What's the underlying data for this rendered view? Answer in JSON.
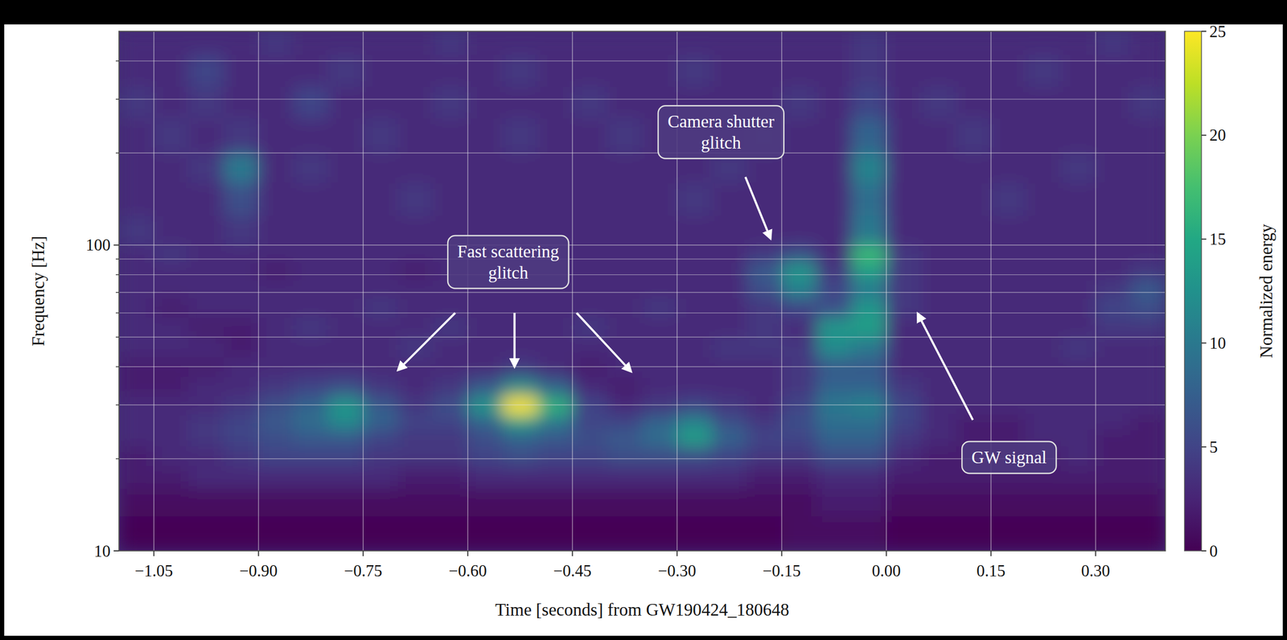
{
  "chart_data": {
    "type": "heatmap",
    "xlabel": "Time [seconds] from GW190424_180648",
    "ylabel": "Frequency [Hz]",
    "log": "y",
    "grid": true,
    "xlim": [
      -1.1,
      0.4
    ],
    "ylim": [
      10,
      500
    ],
    "xticks": [
      {
        "value": -1.05,
        "label": "−1.05"
      },
      {
        "value": -0.9,
        "label": "−0.90"
      },
      {
        "value": -0.75,
        "label": "−0.75"
      },
      {
        "value": -0.6,
        "label": "−0.60"
      },
      {
        "value": -0.45,
        "label": "−0.45"
      },
      {
        "value": -0.3,
        "label": "−0.30"
      },
      {
        "value": -0.15,
        "label": "−0.15"
      },
      {
        "value": 0,
        "label": "0.00"
      },
      0.15,
      {
        "value": 0.3,
        "label": "0.30"
      }
    ],
    "yticks": [
      10,
      100
    ],
    "yticks_minor": [
      20,
      30,
      40,
      50,
      60,
      70,
      80,
      90,
      200,
      300,
      400
    ],
    "x_edges": [
      -1.1,
      -1.05,
      -1.0,
      -0.95,
      -0.9,
      -0.85,
      -0.8,
      -0.75,
      -0.7,
      -0.65,
      -0.6,
      -0.55,
      -0.5,
      -0.45,
      -0.4,
      -0.35,
      -0.3,
      -0.25,
      -0.2,
      -0.15,
      -0.1,
      -0.05,
      0,
      0.05,
      0.1,
      0.15,
      0.2,
      0.25,
      0.3,
      0.35,
      0.4
    ],
    "y_edges": [
      10,
      13,
      16,
      19,
      22,
      25,
      28,
      32,
      37,
      43,
      50,
      58,
      67,
      77,
      88,
      100,
      125,
      160,
      200,
      260,
      330,
      420,
      500
    ],
    "z": [
      [
        0,
        0,
        0,
        0,
        0,
        0,
        0,
        0,
        0,
        0,
        0,
        0,
        0,
        0,
        0,
        0,
        0,
        0,
        0,
        1,
        1,
        1,
        0,
        0,
        0,
        0,
        0,
        0,
        0,
        0
      ],
      [
        1,
        1,
        1,
        1,
        1,
        1,
        1,
        1,
        1,
        1,
        1,
        1,
        1,
        1,
        1,
        1,
        1,
        1,
        1,
        1,
        2,
        2,
        1,
        1,
        1,
        1,
        1,
        1,
        1,
        1
      ],
      [
        2,
        2,
        3,
        3,
        3,
        3,
        3,
        3,
        2,
        2,
        3,
        3,
        3,
        3,
        3,
        3,
        3,
        3,
        2,
        2,
        3,
        3,
        2,
        2,
        2,
        2,
        2,
        2,
        2,
        2
      ],
      [
        2,
        3,
        3,
        4,
        5,
        5,
        5,
        4,
        4,
        4,
        5,
        6,
        5,
        5,
        6,
        6,
        6,
        5,
        4,
        4,
        6,
        6,
        3,
        2,
        2,
        2,
        2,
        3,
        2,
        2
      ],
      [
        3,
        3,
        4,
        5,
        6,
        7,
        7,
        5,
        4,
        4,
        6,
        8,
        7,
        6,
        7,
        9,
        14,
        8,
        5,
        5,
        8,
        8,
        4,
        3,
        2,
        2,
        3,
        3,
        2,
        2
      ],
      [
        3,
        3,
        4,
        5,
        7,
        9,
        12,
        8,
        5,
        5,
        8,
        14,
        10,
        5,
        5,
        8,
        11,
        6,
        4,
        6,
        9,
        9,
        5,
        3,
        2,
        2,
        3,
        3,
        3,
        2
      ],
      [
        3,
        3,
        3,
        4,
        6,
        8,
        13,
        7,
        4,
        6,
        13,
        25,
        16,
        5,
        3,
        4,
        5,
        4,
        3,
        5,
        10,
        11,
        5,
        3,
        3,
        3,
        3,
        3,
        3,
        3
      ],
      [
        2,
        2,
        3,
        3,
        4,
        5,
        6,
        4,
        3,
        4,
        7,
        12,
        8,
        3,
        2,
        3,
        3,
        3,
        3,
        4,
        8,
        8,
        4,
        3,
        3,
        3,
        3,
        3,
        3,
        3
      ],
      [
        2,
        2,
        2,
        3,
        3,
        3,
        3,
        3,
        3,
        3,
        3,
        4,
        3,
        2,
        3,
        3,
        3,
        3,
        3,
        4,
        7,
        7,
        3,
        3,
        3,
        3,
        3,
        3,
        3,
        3
      ],
      [
        3,
        3,
        3,
        2,
        3,
        3,
        3,
        3,
        4,
        3,
        3,
        3,
        3,
        3,
        3,
        3,
        3,
        4,
        4,
        4,
        12,
        10,
        3,
        3,
        3,
        3,
        3,
        4,
        3,
        3
      ],
      [
        3,
        3,
        2,
        2,
        3,
        4,
        3,
        3,
        3,
        4,
        3,
        3,
        3,
        4,
        3,
        3,
        3,
        3,
        4,
        3,
        13,
        14,
        3,
        3,
        3,
        3,
        3,
        3,
        4,
        4
      ],
      [
        3,
        2,
        3,
        3,
        3,
        3,
        3,
        4,
        3,
        3,
        3,
        3,
        3,
        3,
        3,
        4,
        3,
        3,
        4,
        5,
        6,
        13,
        4,
        3,
        3,
        3,
        3,
        3,
        5,
        6
      ],
      [
        3,
        3,
        3,
        3,
        3,
        3,
        3,
        3,
        3,
        3,
        3,
        3,
        3,
        3,
        3,
        3,
        3,
        3,
        6,
        11,
        5,
        10,
        4,
        3,
        3,
        3,
        3,
        3,
        4,
        7
      ],
      [
        3,
        3,
        3,
        3,
        2,
        3,
        3,
        3,
        2,
        3,
        3,
        3,
        3,
        3,
        3,
        3,
        3,
        3,
        7,
        13,
        4,
        14,
        4,
        3,
        3,
        3,
        3,
        3,
        3,
        4
      ],
      [
        3,
        4,
        3,
        3,
        3,
        3,
        3,
        3,
        3,
        3,
        3,
        3,
        3,
        3,
        3,
        3,
        3,
        3,
        4,
        6,
        3,
        17,
        4,
        3,
        3,
        3,
        3,
        3,
        3,
        3
      ],
      [
        4,
        3,
        3,
        4,
        3,
        3,
        3,
        3,
        3,
        3,
        3,
        3,
        3,
        3,
        3,
        3,
        3,
        3,
        3,
        3,
        3,
        10,
        3,
        3,
        3,
        3,
        3,
        3,
        3,
        3
      ],
      [
        3,
        3,
        3,
        6,
        3,
        3,
        3,
        3,
        4,
        3,
        3,
        3,
        3,
        3,
        3,
        3,
        4,
        3,
        3,
        3,
        3,
        9,
        3,
        3,
        3,
        4,
        3,
        3,
        3,
        3
      ],
      [
        3,
        3,
        4,
        10,
        3,
        4,
        3,
        3,
        3,
        3,
        3,
        3,
        3,
        3,
        3,
        3,
        3,
        4,
        3,
        3,
        3,
        11,
        3,
        3,
        3,
        3,
        3,
        4,
        3,
        3
      ],
      [
        3,
        4,
        3,
        4,
        3,
        3,
        3,
        4,
        3,
        3,
        3,
        4,
        3,
        3,
        4,
        3,
        3,
        3,
        4,
        3,
        3,
        8,
        3,
        3,
        4,
        3,
        3,
        3,
        3,
        3
      ],
      [
        4,
        3,
        4,
        3,
        3,
        5,
        3,
        3,
        3,
        4,
        3,
        3,
        3,
        4,
        3,
        3,
        3,
        3,
        3,
        4,
        3,
        5,
        3,
        4,
        3,
        3,
        3,
        3,
        3,
        4
      ],
      [
        3,
        3,
        5,
        3,
        3,
        3,
        4,
        3,
        3,
        3,
        3,
        4,
        3,
        3,
        3,
        3,
        4,
        3,
        3,
        3,
        3,
        4,
        3,
        3,
        3,
        3,
        4,
        3,
        3,
        3
      ],
      [
        3,
        3,
        3,
        3,
        4,
        3,
        3,
        3,
        3,
        4,
        3,
        3,
        3,
        3,
        3,
        3,
        3,
        3,
        3,
        3,
        3,
        4,
        3,
        3,
        3,
        3,
        3,
        3,
        4,
        3
      ]
    ],
    "colorbar": {
      "label": "Normalized energy",
      "range": [
        0,
        25
      ],
      "ticks": [
        0,
        5,
        10,
        15,
        20,
        25
      ]
    },
    "annotations": [
      {
        "text": "Fast scattering glitch",
        "x": -0.542,
        "y": 88,
        "arrows": [
          [
            -0.618,
            60,
            -0.7,
            39
          ],
          [
            -0.533,
            60,
            -0.533,
            40
          ],
          [
            -0.444,
            60,
            -0.366,
            38.6
          ]
        ]
      },
      {
        "text": "Camera shutter glitch",
        "x": -0.237,
        "y": 234,
        "arrows": [
          [
            -0.202,
            167,
            -0.166,
            105
          ]
        ]
      },
      {
        "text": "GW signal",
        "x": 0.176,
        "y": 20.2,
        "arrows": [
          [
            0.124,
            26.8,
            0.045,
            59.7
          ]
        ]
      }
    ]
  }
}
